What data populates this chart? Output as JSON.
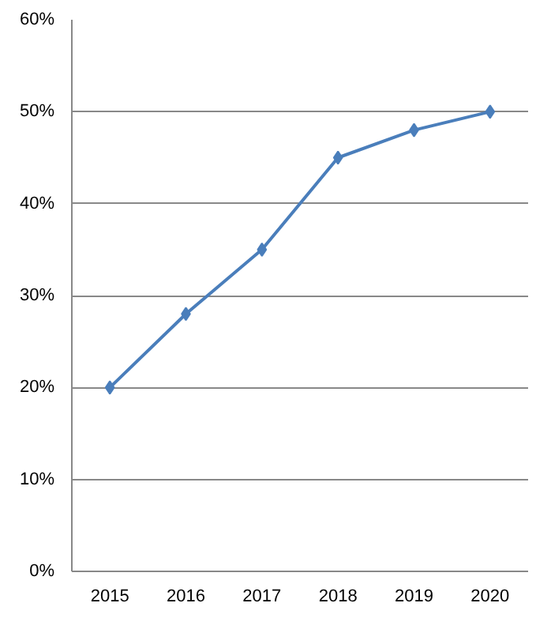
{
  "chart_data": {
    "type": "line",
    "categories": [
      "2015",
      "2016",
      "2017",
      "2018",
      "2019",
      "2020"
    ],
    "series": [
      {
        "color": "#4a7ebb",
        "values": [
          20,
          28,
          35,
          45,
          48,
          50
        ]
      }
    ],
    "ylim": [
      0,
      60
    ],
    "yticks": [
      {
        "value": 0,
        "label": "0%"
      },
      {
        "value": 10,
        "label": "10%"
      },
      {
        "value": 20,
        "label": "20%"
      },
      {
        "value": 30,
        "label": "30%"
      },
      {
        "value": 40,
        "label": "40%"
      },
      {
        "value": 50,
        "label": "50%"
      },
      {
        "value": 60,
        "label": "60%"
      }
    ],
    "grid": "y",
    "marker": "diamond",
    "line_style": "solid"
  }
}
